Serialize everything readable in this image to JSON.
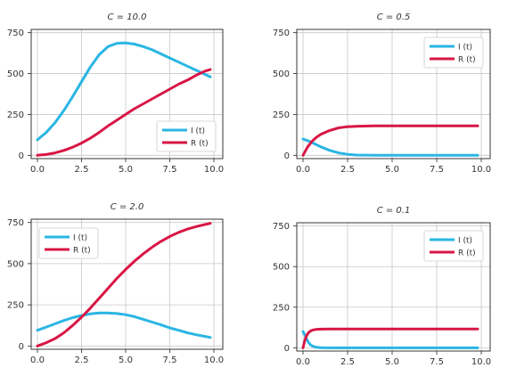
{
  "colors": {
    "I": "#2ab6e3",
    "R": "#d81645"
  },
  "chart_data": [
    {
      "type": "line",
      "title": "C = 10.0",
      "xlim": [
        0,
        10
      ],
      "ylim": [
        -20,
        770
      ],
      "xticks": [
        "0.0",
        "2.5",
        "5.0",
        "7.5",
        "10.0"
      ],
      "yticks": [
        "0",
        "250",
        "500",
        "750"
      ],
      "legend": "bottom-right",
      "x": [
        0,
        0.5,
        1,
        1.5,
        2,
        2.5,
        3,
        3.5,
        4,
        4.5,
        5,
        5.5,
        6,
        6.5,
        7,
        7.5,
        8,
        8.5,
        9,
        9.5,
        9.8
      ],
      "series": [
        {
          "name": "I (t)",
          "key": "I",
          "values": [
            95,
            140,
            200,
            275,
            360,
            450,
            540,
            615,
            665,
            685,
            688,
            680,
            665,
            645,
            620,
            595,
            570,
            545,
            520,
            495,
            480
          ]
        },
        {
          "name": "R (t)",
          "key": "R",
          "values": [
            0,
            5,
            15,
            30,
            50,
            75,
            105,
            140,
            180,
            215,
            250,
            285,
            315,
            345,
            375,
            405,
            435,
            460,
            490,
            515,
            525
          ]
        }
      ]
    },
    {
      "type": "line",
      "title": "C = 0.5",
      "xlim": [
        0,
        10
      ],
      "ylim": [
        -20,
        770
      ],
      "xticks": [
        "0.0",
        "2.5",
        "5.0",
        "7.5",
        "10.0"
      ],
      "yticks": [
        "0",
        "250",
        "500",
        "750"
      ],
      "legend": "top-right",
      "x": [
        0,
        0.25,
        0.5,
        0.75,
        1,
        1.5,
        2,
        2.5,
        3,
        4,
        5,
        6,
        7,
        8,
        9,
        9.8
      ],
      "series": [
        {
          "name": "I (t)",
          "key": "I",
          "values": [
            100,
            90,
            78,
            65,
            52,
            30,
            15,
            6,
            2,
            0,
            0,
            0,
            0,
            0,
            0,
            0
          ]
        },
        {
          "name": "R (t)",
          "key": "R",
          "values": [
            0,
            50,
            85,
            110,
            128,
            152,
            168,
            175,
            178,
            180,
            180,
            180,
            180,
            180,
            180,
            180
          ]
        }
      ]
    },
    {
      "type": "line",
      "title": "C = 2.0",
      "xlim": [
        0,
        10
      ],
      "ylim": [
        -20,
        770
      ],
      "xticks": [
        "0.0",
        "2.5",
        "5.0",
        "7.5",
        "10.0"
      ],
      "yticks": [
        "0",
        "250",
        "500",
        "750"
      ],
      "legend": "top-left",
      "x": [
        0,
        0.5,
        1,
        1.5,
        2,
        2.5,
        3,
        3.5,
        4,
        4.5,
        5,
        5.5,
        6,
        6.5,
        7,
        7.5,
        8,
        8.5,
        9,
        9.5,
        9.8
      ],
      "series": [
        {
          "name": "I (t)",
          "key": "I",
          "values": [
            95,
            115,
            135,
            155,
            172,
            185,
            195,
            200,
            200,
            197,
            190,
            178,
            162,
            145,
            128,
            110,
            95,
            80,
            68,
            58,
            52
          ]
        },
        {
          "name": "R (t)",
          "key": "R",
          "values": [
            0,
            20,
            45,
            80,
            125,
            175,
            230,
            290,
            350,
            410,
            465,
            515,
            560,
            600,
            635,
            665,
            690,
            710,
            725,
            738,
            745
          ]
        }
      ]
    },
    {
      "type": "line",
      "title": "C = 0.1",
      "xlim": [
        0,
        10
      ],
      "ylim": [
        -20,
        770
      ],
      "xticks": [
        "0.0",
        "2.5",
        "5.0",
        "7.5",
        "10.0"
      ],
      "yticks": [
        "0",
        "250",
        "500",
        "750"
      ],
      "legend": "top-right",
      "x": [
        0,
        0.1,
        0.2,
        0.3,
        0.4,
        0.5,
        0.7,
        1,
        1.5,
        2,
        3,
        4,
        5,
        6,
        7,
        8,
        9,
        9.8
      ],
      "series": [
        {
          "name": "I (t)",
          "key": "I",
          "values": [
            100,
            80,
            55,
            35,
            20,
            12,
            4,
            1,
            0,
            0,
            0,
            0,
            0,
            0,
            0,
            0,
            0,
            0
          ]
        },
        {
          "name": "R (t)",
          "key": "R",
          "values": [
            0,
            45,
            75,
            92,
            102,
            108,
            113,
            115,
            116,
            116,
            116,
            116,
            116,
            116,
            116,
            116,
            116,
            116
          ]
        }
      ]
    }
  ]
}
